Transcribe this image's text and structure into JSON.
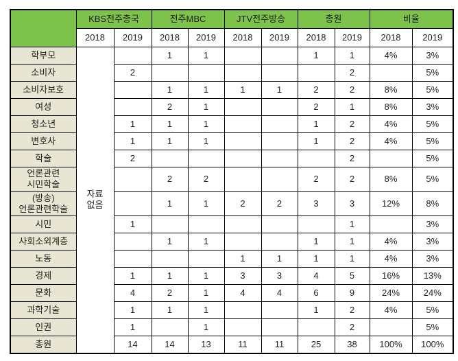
{
  "table": {
    "corner_label": "",
    "groups": [
      "KBS전주총국",
      "전주MBC",
      "JTV전주방송",
      "총원",
      "비율"
    ],
    "years": [
      "2018",
      "2019",
      "2018",
      "2019",
      "2018",
      "2019",
      "2018",
      "2019",
      "2018",
      "2019"
    ],
    "no_data_text": "자료\n없음",
    "column_keys": [
      "KBS전주총국 2019",
      "전주MBC 2018",
      "전주MBC 2019",
      "JTV전주방송 2018",
      "JTV전주방송 2019",
      "총원 2018",
      "총원 2019",
      "비율 2018",
      "비율 2019"
    ],
    "rows": [
      {
        "label": "학부모",
        "values": [
          "",
          "1",
          "1",
          "",
          "",
          "1",
          "1",
          "4%",
          "3%"
        ]
      },
      {
        "label": "소비자",
        "values": [
          "2",
          "",
          "",
          "",
          "",
          "",
          "2",
          "",
          "5%"
        ]
      },
      {
        "label": "소비자보호",
        "values": [
          "",
          "1",
          "1",
          "1",
          "1",
          "2",
          "2",
          "8%",
          "5%"
        ]
      },
      {
        "label": "여성",
        "values": [
          "",
          "2",
          "1",
          "",
          "",
          "2",
          "1",
          "8%",
          "3%"
        ]
      },
      {
        "label": "청소년",
        "values": [
          "1",
          "1",
          "1",
          "",
          "",
          "1",
          "2",
          "4%",
          "5%"
        ]
      },
      {
        "label": "변호사",
        "values": [
          "1",
          "1",
          "1",
          "",
          "",
          "1",
          "2",
          "4%",
          "5%"
        ]
      },
      {
        "label": "학술",
        "values": [
          "2",
          "",
          "",
          "",
          "",
          "",
          "2",
          "",
          "5%"
        ]
      },
      {
        "label": "언론관련\n시민학술",
        "values": [
          "",
          "2",
          "2",
          "",
          "",
          "2",
          "2",
          "8%",
          "5%"
        ]
      },
      {
        "label": "(방송)\n언론관련학술",
        "values": [
          "",
          "1",
          "1",
          "2",
          "2",
          "3",
          "3",
          "12%",
          "8%"
        ]
      },
      {
        "label": "시민",
        "values": [
          "1",
          "",
          "",
          "",
          "",
          "",
          "1",
          "",
          "3%"
        ]
      },
      {
        "label": "사회소외계층",
        "values": [
          "",
          "1",
          "1",
          "",
          "",
          "1",
          "1",
          "4%",
          "3%"
        ]
      },
      {
        "label": "노동",
        "values": [
          "",
          "",
          "",
          "1",
          "1",
          "1",
          "1",
          "4%",
          "3%"
        ]
      },
      {
        "label": "경제",
        "values": [
          "1",
          "1",
          "1",
          "3",
          "3",
          "4",
          "5",
          "16%",
          "13%"
        ]
      },
      {
        "label": "문화",
        "values": [
          "4",
          "2",
          "1",
          "4",
          "4",
          "6",
          "9",
          "24%",
          "24%"
        ]
      },
      {
        "label": "과학기술",
        "values": [
          "1",
          "1",
          "1",
          "",
          "",
          "1",
          "2",
          "4%",
          "5%"
        ]
      },
      {
        "label": "인권",
        "values": [
          "1",
          "",
          "1",
          "",
          "",
          "",
          "2",
          "",
          "5%"
        ]
      },
      {
        "label": "총원",
        "values": [
          "14",
          "14",
          "13",
          "11",
          "11",
          "25",
          "38",
          "100%",
          "100%"
        ]
      }
    ]
  },
  "colors": {
    "header_green": "#7dc24b",
    "label_tan": "#e9e5d3",
    "border_black": "#000000",
    "text": "#1f1f1f"
  }
}
